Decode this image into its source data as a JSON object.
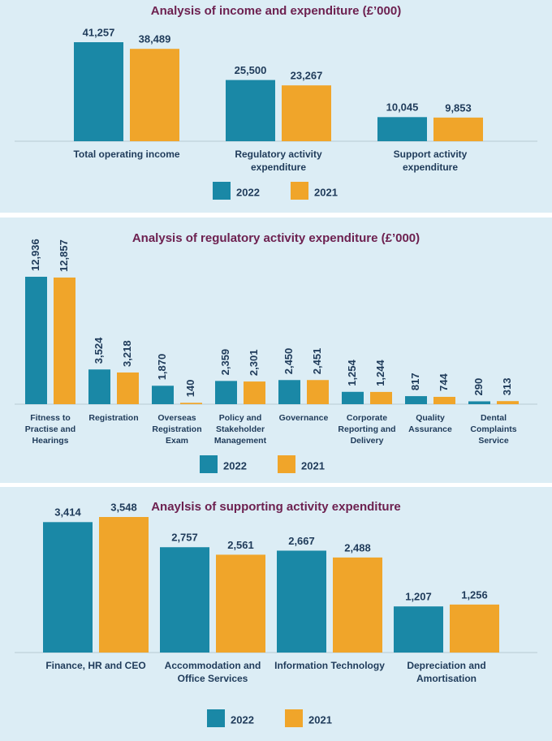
{
  "chart_data": [
    {
      "type": "bar",
      "title": "Analysis of income and expenditure (£’000)",
      "categories": [
        "Total operating income",
        "Regulatory activity expenditure",
        "Support activity expenditure"
      ],
      "series": [
        {
          "name": "2022",
          "color": "#1a88a6",
          "values": [
            41257,
            25500,
            10045
          ],
          "value_labels": [
            "41,257",
            "25,500",
            "10,045"
          ]
        },
        {
          "name": "2021",
          "color": "#f0a52a",
          "values": [
            38489,
            23267,
            9853
          ],
          "value_labels": [
            "38,489",
            "23,267",
            "9,853"
          ]
        }
      ]
    },
    {
      "type": "bar",
      "title": "Analysis of regulatory activity expenditure (£’000)",
      "categories": [
        "Fitness to Practise and Hearings",
        "Registration",
        "Overseas Registration Exam",
        "Policy and Stakeholder Management",
        "Governance",
        "Corporate Reporting and Delivery",
        "Quality Assurance",
        "Dental Complaints Service"
      ],
      "series": [
        {
          "name": "2022",
          "color": "#1a88a6",
          "values": [
            12936,
            3524,
            1870,
            2359,
            2450,
            1254,
            817,
            290
          ],
          "value_labels": [
            "12,936",
            "3,524",
            "1,870",
            "2,359",
            "2,450",
            "1,254",
            "817",
            "290"
          ]
        },
        {
          "name": "2021",
          "color": "#f0a52a",
          "values": [
            12857,
            3218,
            140,
            2301,
            2451,
            1244,
            744,
            313
          ],
          "value_labels": [
            "12,857",
            "3,218",
            "140",
            "2,301",
            "2,451",
            "1,244",
            "744",
            "313"
          ]
        }
      ]
    },
    {
      "type": "bar",
      "title": "Anaylsis of supporting activity expenditure",
      "categories": [
        "Finance, HR and CEO",
        "Accommodation and Office Services",
        "Information Technology",
        "Depreciation and Amortisation"
      ],
      "series": [
        {
          "name": "2022",
          "color": "#1a88a6",
          "values": [
            3414,
            2757,
            2667,
            1207
          ],
          "value_labels": [
            "3,414",
            "2,757",
            "2,667",
            "1,207"
          ]
        },
        {
          "name": "2021",
          "color": "#f0a52a",
          "values": [
            3548,
            2561,
            2488,
            1256
          ],
          "value_labels": [
            "3,548",
            "2,561",
            "2,488",
            "1,256"
          ]
        }
      ]
    }
  ]
}
